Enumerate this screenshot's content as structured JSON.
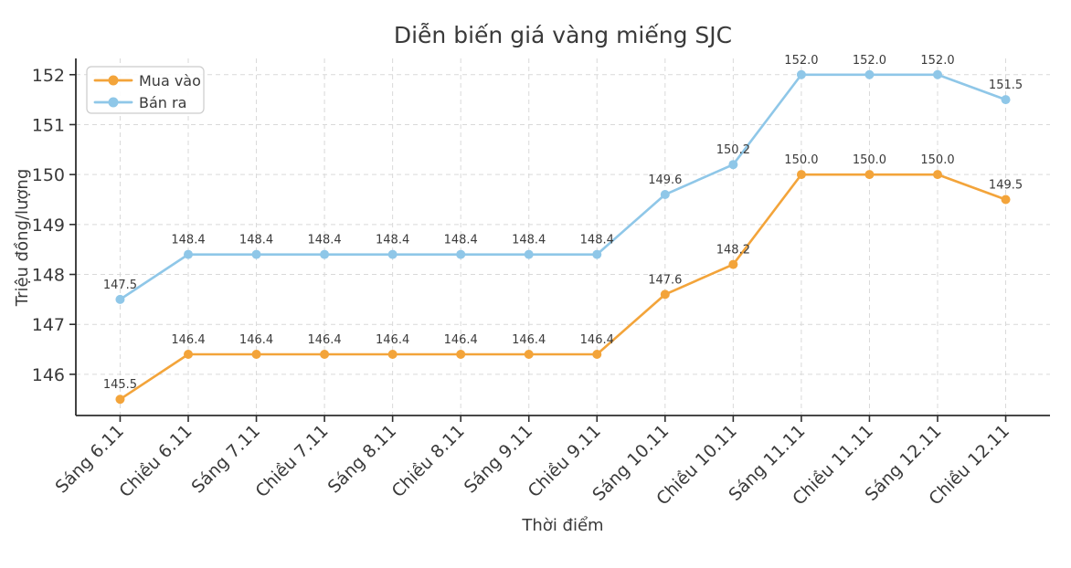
{
  "chart_data": {
    "type": "line",
    "title": "Diễn biến giá vàng miếng SJC",
    "xlabel": "Thời điểm",
    "ylabel": "Triệu đồng/lượng",
    "categories": [
      "Sáng 6.11",
      "Chiều 6.11",
      "Sáng 7.11",
      "Chiều 7.11",
      "Sáng 8.11",
      "Chiều 8.11",
      "Sáng 9.11",
      "Chiều 9.11",
      "Sáng 10.11",
      "Chiều 10.11",
      "Sáng 11.11",
      "Chiều 11.11",
      "Sáng 12.11",
      "Chiều 12.11"
    ],
    "series": [
      {
        "name": "Mua vào",
        "color": "#f3a43a",
        "values": [
          145.5,
          146.4,
          146.4,
          146.4,
          146.4,
          146.4,
          146.4,
          146.4,
          147.6,
          148.2,
          150.0,
          150.0,
          150.0,
          149.5
        ]
      },
      {
        "name": "Bán ra",
        "color": "#8fc7e8",
        "values": [
          147.5,
          148.4,
          148.4,
          148.4,
          148.4,
          148.4,
          148.4,
          148.4,
          149.6,
          150.2,
          152.0,
          152.0,
          152.0,
          151.5
        ]
      }
    ],
    "yticks": [
      146,
      147,
      148,
      149,
      150,
      151,
      152
    ],
    "ylim": [
      145.175,
      152.325
    ],
    "grid": true,
    "legend_position": "upper left",
    "point_labels": true,
    "label_decimals": 1
  },
  "colors": {
    "text": "#3a3a3a",
    "grid": "#d9d9d9",
    "axis": "#2e2e2e",
    "legend_border": "#cccccc"
  }
}
